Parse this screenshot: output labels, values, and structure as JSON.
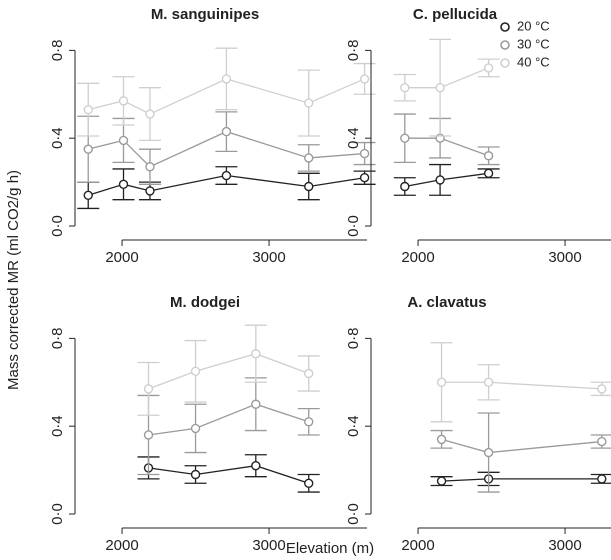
{
  "ylabel": "Mass corrected MR (ml CO2/g h)",
  "xlabel": "Elevation (m)",
  "chart_data": [
    {
      "type": "line",
      "title": "M. sanguinipes",
      "x": [
        1770,
        2010,
        2190,
        2710,
        3270,
        3650
      ],
      "xlim": [
        1680,
        3680
      ],
      "xticks": [
        2000,
        3000
      ],
      "ylim": [
        -0.05,
        0.87
      ],
      "yticks": [
        {
          "value": 0,
          "label": "0·0"
        },
        {
          "value": 0.4,
          "label": "0·4"
        },
        {
          "value": 0.8,
          "label": "0·8"
        }
      ],
      "series": [
        {
          "color": "#222222",
          "values": [
            0.14,
            0.19,
            0.16,
            0.23,
            0.18,
            0.22
          ],
          "errors": [
            0.06,
            0.07,
            0.04,
            0.04,
            0.06,
            0.03
          ]
        },
        {
          "color": "#9a9a9a",
          "values": [
            0.35,
            0.39,
            0.27,
            0.43,
            0.31,
            0.33
          ],
          "errors": [
            0.15,
            0.1,
            0.08,
            0.09,
            0.06,
            0.05
          ]
        },
        {
          "color": "#cfcfcf",
          "values": [
            0.53,
            0.57,
            0.51,
            0.67,
            0.56,
            0.67
          ],
          "errors": [
            0.12,
            0.11,
            0.12,
            0.14,
            0.15,
            0.07
          ]
        }
      ]
    },
    {
      "type": "line",
      "title": "C. pellucida",
      "legend": "top-right",
      "x": [
        1910,
        2150,
        2480
      ],
      "xlim": [
        1680,
        3680
      ],
      "xticks": [
        2000,
        3000
      ],
      "ylim": [
        -0.05,
        0.87
      ],
      "yticks": [
        {
          "value": 0,
          "label": "0·0"
        },
        {
          "value": 0.4,
          "label": "0·4"
        },
        {
          "value": 0.8,
          "label": "0·8"
        }
      ],
      "series": [
        {
          "name": "20 °C",
          "color": "#222222",
          "values": [
            0.18,
            0.21,
            0.24
          ],
          "errors": [
            0.04,
            0.07,
            0.02
          ]
        },
        {
          "name": "30 °C",
          "color": "#9a9a9a",
          "values": [
            0.4,
            0.4,
            0.32
          ],
          "errors": [
            0.11,
            0.09,
            0.04
          ]
        },
        {
          "name": "40 °C",
          "color": "#cfcfcf",
          "values": [
            0.63,
            0.63,
            0.72
          ],
          "errors": [
            0.06,
            0.22,
            0.04
          ]
        }
      ]
    },
    {
      "type": "line",
      "title": "M. dodgei",
      "x": [
        2180,
        2500,
        2910,
        3270
      ],
      "xlim": [
        1680,
        3680
      ],
      "xticks": [
        2000,
        3000
      ],
      "ylim": [
        -0.05,
        0.87
      ],
      "yticks": [
        {
          "value": 0,
          "label": "0·0"
        },
        {
          "value": 0.4,
          "label": "0·4"
        },
        {
          "value": 0.8,
          "label": "0·8"
        }
      ],
      "series": [
        {
          "color": "#222222",
          "values": [
            0.21,
            0.18,
            0.22,
            0.14
          ],
          "errors": [
            0.05,
            0.04,
            0.05,
            0.04
          ]
        },
        {
          "color": "#9a9a9a",
          "values": [
            0.36,
            0.39,
            0.5,
            0.42
          ],
          "errors": [
            0.18,
            0.11,
            0.12,
            0.06
          ]
        },
        {
          "color": "#cfcfcf",
          "values": [
            0.57,
            0.65,
            0.73,
            0.64
          ],
          "errors": [
            0.12,
            0.14,
            0.13,
            0.08
          ]
        }
      ]
    },
    {
      "type": "line",
      "title": "A. clavatus",
      "x": [
        2160,
        2480,
        3250
      ],
      "xlim": [
        1680,
        3680
      ],
      "xticks": [
        2000,
        3000
      ],
      "ylim": [
        -0.05,
        0.87
      ],
      "yticks": [
        {
          "value": 0,
          "label": "0·0"
        },
        {
          "value": 0.4,
          "label": "0·4"
        },
        {
          "value": 0.8,
          "label": "0·8"
        }
      ],
      "series": [
        {
          "color": "#222222",
          "values": [
            0.15,
            0.16,
            0.16
          ],
          "errors": [
            0.02,
            0.03,
            0.02
          ]
        },
        {
          "color": "#9a9a9a",
          "values": [
            0.34,
            0.28,
            0.33
          ],
          "errors": [
            0.04,
            0.18,
            0.03
          ]
        },
        {
          "color": "#cfcfcf",
          "values": [
            0.6,
            0.6,
            0.57
          ],
          "errors": [
            0.18,
            0.08,
            0.03
          ]
        }
      ]
    }
  ]
}
